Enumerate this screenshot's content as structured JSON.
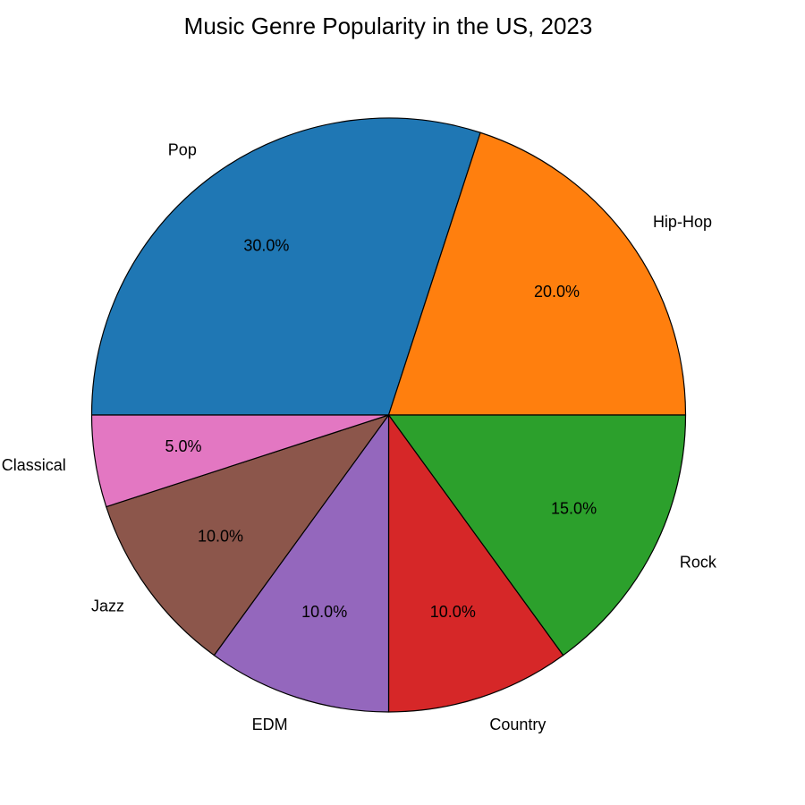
{
  "chart_data": {
    "type": "pie",
    "title": "Music Genre Popularity in the US, 2023",
    "categories": [
      "Pop",
      "Hip-Hop",
      "Rock",
      "Country",
      "EDM",
      "Jazz",
      "Classical"
    ],
    "values": [
      30,
      20,
      15,
      10,
      10,
      10,
      5
    ],
    "percent_labels": [
      "30.0%",
      "20.0%",
      "15.0%",
      "10.0%",
      "10.0%",
      "10.0%",
      "5.0%"
    ],
    "colors": [
      "#1f77b4",
      "#ff7f0e",
      "#2ca02c",
      "#d62728",
      "#9467bd",
      "#8c564b",
      "#e377c2"
    ],
    "start_angle_deg": 180,
    "direction": "clockwise",
    "edge_color": "#000000",
    "legend": "none"
  }
}
